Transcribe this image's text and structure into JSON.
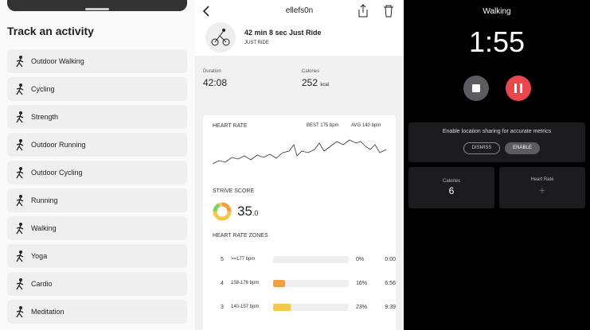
{
  "left": {
    "title": "Track an activity",
    "activities": [
      "Outdoor Walking",
      "Cycling",
      "Strength",
      "Outdoor Running",
      "Outdoor Cycling",
      "Running",
      "Walking",
      "Yoga",
      "Cardio",
      "Meditation"
    ]
  },
  "middle": {
    "header": "ellefs0n",
    "summary": {
      "title": "42 min 8 sec Just Ride",
      "subtitle": "JUST RIDE"
    },
    "stats": [
      {
        "label": "Duration",
        "value": "42:08"
      },
      {
        "label": "Calories",
        "value": "252",
        "unit": "kcal"
      }
    ],
    "heart_rate": {
      "title": "HEART RATE",
      "best": "BEST 175 bpm",
      "avg": "AVG 140 bpm"
    },
    "strive": {
      "title": "STRIVE SCORE",
      "score": "35",
      "decimal": ".0"
    },
    "zones": {
      "title": "HEART RATE ZONES",
      "rows": [
        {
          "zone": "5",
          "range": ">=177 bpm",
          "share": 0,
          "share_label": "0%",
          "time": "0:00",
          "color": "#e0e0e0"
        },
        {
          "zone": "4",
          "range": "158-176 bpm",
          "share": 16,
          "share_label": "16%",
          "time": "6:56",
          "color": "#f0a040"
        },
        {
          "zone": "3",
          "range": "140-157 bpm",
          "share": 23,
          "share_label": "23%",
          "time": "9:39",
          "color": "#f2c94c"
        }
      ]
    }
  },
  "right": {
    "title": "Walking",
    "timer": "1:55",
    "prompt": "Enable location sharing for accurate metrics",
    "dismiss": "DISMISS",
    "enable": "ENABLE",
    "tiles": [
      {
        "label": "Calories",
        "value": "6"
      },
      {
        "label": "Heart Rate"
      }
    ]
  }
}
